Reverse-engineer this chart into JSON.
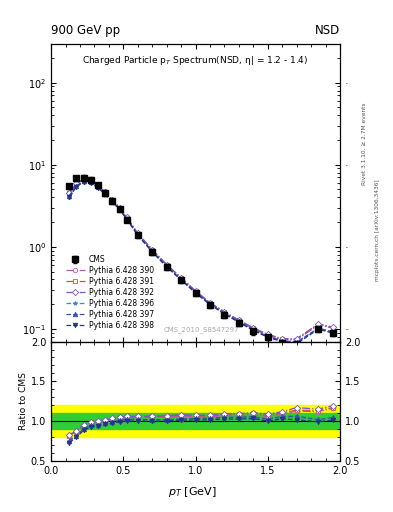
{
  "title_left": "900 GeV pp",
  "title_right": "NSD",
  "main_title": "Charged Particle p$_T$ Spectrum (NSD, \\u03b7| = 1.2 - 1.4)",
  "right_label_top": "Rivet 3.1.10, \\u2265 2.7M events",
  "right_label_bot": "mcplots.cern.ch [arXiv:1306.3436]",
  "watermark": "CMS_2010_S8547297",
  "xlim": [
    0.0,
    2.0
  ],
  "ylim_main": [
    0.07,
    300
  ],
  "ylim_ratio": [
    0.5,
    2.0
  ],
  "cms_x": [
    0.125,
    0.175,
    0.225,
    0.275,
    0.325,
    0.375,
    0.425,
    0.475,
    0.525,
    0.6,
    0.7,
    0.8,
    0.9,
    1.0,
    1.1,
    1.2,
    1.3,
    1.4,
    1.5,
    1.6,
    1.7,
    1.85,
    1.95
  ],
  "cms_y": [
    5.5,
    6.8,
    6.9,
    6.5,
    5.6,
    4.55,
    3.6,
    2.85,
    2.15,
    1.38,
    0.87,
    0.57,
    0.39,
    0.27,
    0.195,
    0.148,
    0.117,
    0.093,
    0.079,
    0.068,
    0.065,
    0.1,
    0.088
  ],
  "cms_yerr": [
    0.4,
    0.5,
    0.5,
    0.5,
    0.4,
    0.35,
    0.28,
    0.22,
    0.17,
    0.1,
    0.07,
    0.045,
    0.031,
    0.022,
    0.016,
    0.013,
    0.01,
    0.008,
    0.006,
    0.006,
    0.005,
    0.008,
    0.007
  ],
  "green_band": [
    0.9,
    1.1
  ],
  "yellow_band": [
    0.8,
    1.2
  ],
  "lines": [
    {
      "label": "Pythia 6.428 390",
      "color": "#bb55bb",
      "linestyle": "-.",
      "marker": "o",
      "markerfacecolor": "white",
      "x": [
        0.125,
        0.175,
        0.225,
        0.275,
        0.325,
        0.375,
        0.425,
        0.475,
        0.525,
        0.6,
        0.7,
        0.8,
        0.9,
        1.0,
        1.1,
        1.2,
        1.3,
        1.4,
        1.5,
        1.6,
        1.7,
        1.85,
        1.95
      ],
      "y": [
        4.5,
        5.9,
        6.5,
        6.35,
        5.5,
        4.55,
        3.65,
        2.95,
        2.25,
        1.44,
        0.91,
        0.6,
        0.415,
        0.285,
        0.205,
        0.158,
        0.125,
        0.1,
        0.083,
        0.074,
        0.073,
        0.112,
        0.102
      ]
    },
    {
      "label": "Pythia 6.428 391",
      "color": "#cc5544",
      "linestyle": "-.",
      "marker": "s",
      "markerfacecolor": "white",
      "x": [
        0.125,
        0.175,
        0.225,
        0.275,
        0.325,
        0.375,
        0.425,
        0.475,
        0.525,
        0.6,
        0.7,
        0.8,
        0.9,
        1.0,
        1.1,
        1.2,
        1.3,
        1.4,
        1.5,
        1.6,
        1.7,
        1.85,
        1.95
      ],
      "y": [
        4.5,
        5.9,
        6.55,
        6.4,
        5.55,
        4.6,
        3.7,
        2.97,
        2.27,
        1.45,
        0.92,
        0.605,
        0.418,
        0.288,
        0.207,
        0.16,
        0.127,
        0.102,
        0.084,
        0.075,
        0.074,
        0.113,
        0.103
      ]
    },
    {
      "label": "Pythia 6.428 392",
      "color": "#7755cc",
      "linestyle": "-.",
      "marker": "D",
      "markerfacecolor": "white",
      "x": [
        0.125,
        0.175,
        0.225,
        0.275,
        0.325,
        0.375,
        0.425,
        0.475,
        0.525,
        0.6,
        0.7,
        0.8,
        0.9,
        1.0,
        1.1,
        1.2,
        1.3,
        1.4,
        1.5,
        1.6,
        1.7,
        1.85,
        1.95
      ],
      "y": [
        4.55,
        5.95,
        6.6,
        6.45,
        5.58,
        4.62,
        3.72,
        2.99,
        2.28,
        1.46,
        0.925,
        0.608,
        0.421,
        0.29,
        0.209,
        0.162,
        0.128,
        0.103,
        0.086,
        0.076,
        0.076,
        0.115,
        0.105
      ]
    },
    {
      "label": "Pythia 6.428 396",
      "color": "#4488cc",
      "linestyle": "--",
      "marker": "*",
      "markerfacecolor": "#4488cc",
      "x": [
        0.125,
        0.175,
        0.225,
        0.275,
        0.325,
        0.375,
        0.425,
        0.475,
        0.525,
        0.6,
        0.7,
        0.8,
        0.9,
        1.0,
        1.1,
        1.2,
        1.3,
        1.4,
        1.5,
        1.6,
        1.7,
        1.85,
        1.95
      ],
      "y": [
        4.1,
        5.5,
        6.2,
        6.1,
        5.3,
        4.42,
        3.55,
        2.87,
        2.18,
        1.4,
        0.88,
        0.578,
        0.399,
        0.277,
        0.2,
        0.154,
        0.122,
        0.097,
        0.08,
        0.071,
        0.068,
        0.101,
        0.091
      ]
    },
    {
      "label": "Pythia 6.428 397",
      "color": "#3355aa",
      "linestyle": "--",
      "marker": "^",
      "markerfacecolor": "#3355aa",
      "x": [
        0.125,
        0.175,
        0.225,
        0.275,
        0.325,
        0.375,
        0.425,
        0.475,
        0.525,
        0.6,
        0.7,
        0.8,
        0.9,
        1.0,
        1.1,
        1.2,
        1.3,
        1.4,
        1.5,
        1.6,
        1.7,
        1.85,
        1.95
      ],
      "y": [
        4.15,
        5.55,
        6.25,
        6.15,
        5.32,
        4.44,
        3.57,
        2.89,
        2.2,
        1.41,
        0.885,
        0.58,
        0.401,
        0.279,
        0.202,
        0.155,
        0.123,
        0.098,
        0.081,
        0.072,
        0.069,
        0.102,
        0.092
      ]
    },
    {
      "label": "Pythia 6.428 398",
      "color": "#223388",
      "linestyle": "--",
      "marker": "v",
      "markerfacecolor": "#223388",
      "x": [
        0.125,
        0.175,
        0.225,
        0.275,
        0.325,
        0.375,
        0.425,
        0.475,
        0.525,
        0.6,
        0.7,
        0.8,
        0.9,
        1.0,
        1.1,
        1.2,
        1.3,
        1.4,
        1.5,
        1.6,
        1.7,
        1.85,
        1.95
      ],
      "y": [
        4.0,
        5.4,
        6.1,
        6.02,
        5.22,
        4.36,
        3.5,
        2.83,
        2.15,
        1.38,
        0.868,
        0.57,
        0.394,
        0.274,
        0.198,
        0.152,
        0.12,
        0.096,
        0.079,
        0.07,
        0.066,
        0.099,
        0.089
      ]
    }
  ]
}
